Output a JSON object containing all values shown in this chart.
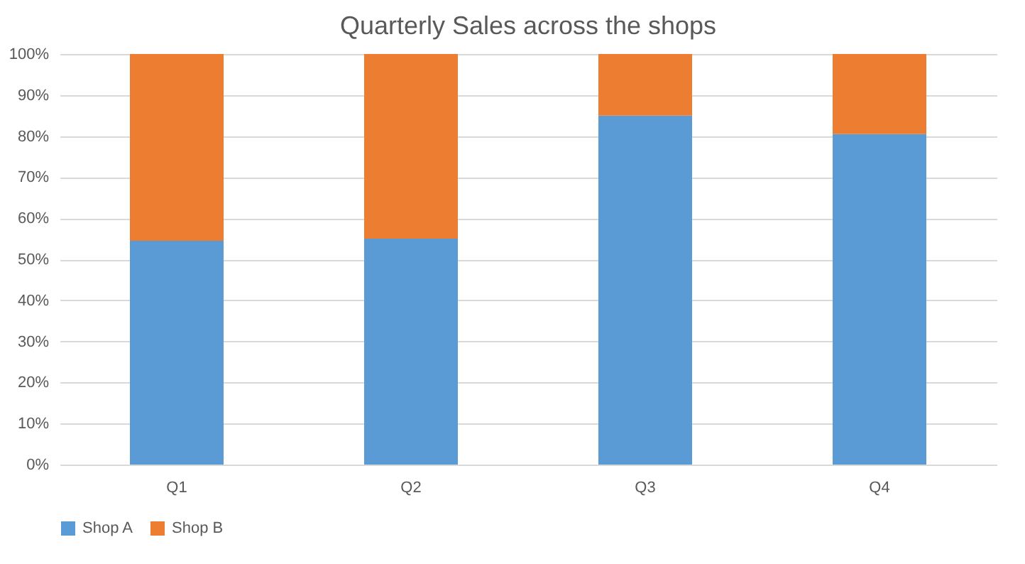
{
  "chart_data": {
    "type": "bar",
    "stacked": true,
    "title": "Quarterly Sales across the shops",
    "categories": [
      "Q1",
      "Q2",
      "Q3",
      "Q4"
    ],
    "series": [
      {
        "name": "Shop A",
        "color": "#5b9bd5",
        "values": [
          54.5,
          55,
          85,
          80.5
        ]
      },
      {
        "name": "Shop B",
        "color": "#ed7d31",
        "values": [
          45.5,
          45,
          15,
          19.5
        ]
      }
    ],
    "ylim": [
      0,
      100
    ],
    "yticks": [
      {
        "value": 0,
        "label": "0%"
      },
      {
        "value": 10,
        "label": "10%"
      },
      {
        "value": 20,
        "label": "20%"
      },
      {
        "value": 30,
        "label": "30%"
      },
      {
        "value": 40,
        "label": "40%"
      },
      {
        "value": 50,
        "label": "50%"
      },
      {
        "value": 60,
        "label": "60%"
      },
      {
        "value": 70,
        "label": "70%"
      },
      {
        "value": 80,
        "label": "80%"
      },
      {
        "value": 90,
        "label": "90%"
      },
      {
        "value": 100,
        "label": "100%"
      }
    ],
    "grid": "y",
    "legend": "bottom"
  }
}
